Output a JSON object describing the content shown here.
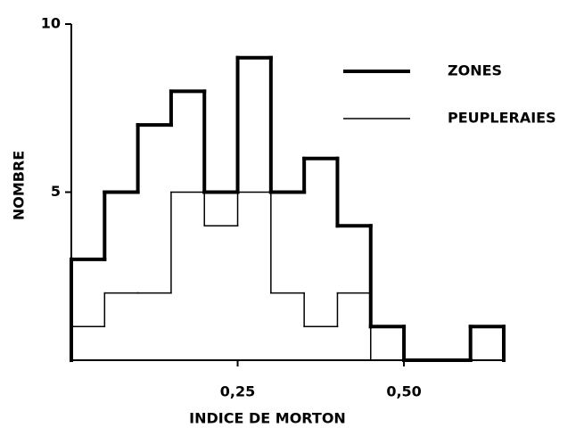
{
  "chart_data": {
    "type": "histogram",
    "xlabel": "INDICE DE MORTON",
    "ylabel": "NOMBRE",
    "bins": [
      0,
      0.05,
      0.1,
      0.15,
      0.2,
      0.25,
      0.3,
      0.35,
      0.4,
      0.45,
      0.5,
      0.55,
      0.6,
      0.65
    ],
    "series": [
      {
        "name": "ZONES",
        "color": "#000000",
        "linewidth": 4,
        "values": [
          3,
          5,
          7,
          8,
          5,
          9,
          5,
          6,
          4,
          1,
          0,
          0,
          1
        ]
      },
      {
        "name": "PEUPLERAIES",
        "color": "#000000",
        "linewidth": 1.5,
        "values": [
          1,
          2,
          2,
          5,
          4,
          5,
          2,
          1,
          2,
          0,
          0,
          0,
          0
        ]
      }
    ],
    "xlim": [
      0,
      0.65
    ],
    "ylim": [
      0,
      10
    ],
    "xticks": [
      {
        "value": 0.25,
        "label": "0,25"
      },
      {
        "value": 0.5,
        "label": "0,50"
      }
    ],
    "yticks": [
      5,
      10
    ],
    "grid": false,
    "legend": "upper right"
  }
}
